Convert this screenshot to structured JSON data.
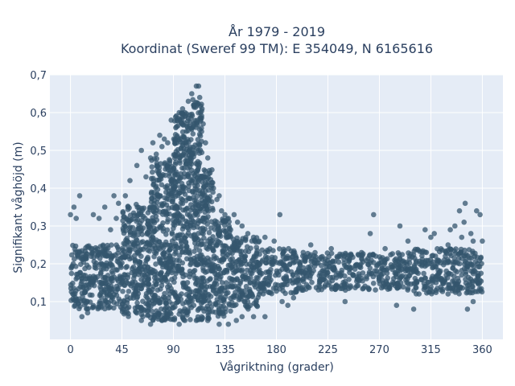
{
  "chart_data": {
    "type": "scatter",
    "title_line1": "År 1979 - 2019",
    "title_line2": "Koordinat (Sweref 99 TM): E 354049, N 6165616",
    "xlabel": "Vågriktning (grader)",
    "ylabel": "Signifikant våghöjd (m)",
    "xlim": [
      -18,
      378
    ],
    "ylim": [
      0.0,
      0.7
    ],
    "xticks": [
      0,
      45,
      90,
      135,
      180,
      225,
      270,
      315,
      360
    ],
    "yticks": [
      0.1,
      0.2,
      0.3,
      0.4,
      0.5,
      0.6,
      0.7
    ],
    "ytick_labels": [
      "0,1",
      "0,2",
      "0,3",
      "0,4",
      "0,5",
      "0,6",
      "0,7"
    ],
    "grid": true,
    "colors": {
      "plot_bg": "#e5ecf6",
      "grid": "#ffffff",
      "marker": "#34556e"
    },
    "series": [
      {
        "dense_bands": [
          {
            "x": [
              0,
              45
            ],
            "y": [
              0.08,
              0.25
            ]
          },
          {
            "x": [
              45,
              70
            ],
            "y": [
              0.06,
              0.36
            ]
          },
          {
            "x": [
              70,
              90
            ],
            "y": [
              0.05,
              0.48
            ]
          },
          {
            "x": [
              90,
              105
            ],
            "y": [
              0.05,
              0.6
            ]
          },
          {
            "x": [
              105,
              115
            ],
            "y": [
              0.05,
              0.64
            ]
          },
          {
            "x": [
              115,
              125
            ],
            "y": [
              0.05,
              0.45
            ]
          },
          {
            "x": [
              125,
              140
            ],
            "y": [
              0.06,
              0.32
            ]
          },
          {
            "x": [
              140,
              165
            ],
            "y": [
              0.08,
              0.27
            ]
          },
          {
            "x": [
              165,
              200
            ],
            "y": [
              0.12,
              0.24
            ]
          },
          {
            "x": [
              200,
              300
            ],
            "y": [
              0.13,
              0.23
            ]
          },
          {
            "x": [
              300,
              360
            ],
            "y": [
              0.12,
              0.24
            ]
          }
        ],
        "points": [
          [
            0,
            0.33
          ],
          [
            3,
            0.35
          ],
          [
            5,
            0.32
          ],
          [
            8,
            0.38
          ],
          [
            2,
            0.12
          ],
          [
            4,
            0.09
          ],
          [
            10,
            0.06
          ],
          [
            15,
            0.07
          ],
          [
            20,
            0.33
          ],
          [
            25,
            0.32
          ],
          [
            30,
            0.35
          ],
          [
            35,
            0.29
          ],
          [
            38,
            0.38
          ],
          [
            40,
            0.32
          ],
          [
            42,
            0.36
          ],
          [
            48,
            0.38
          ],
          [
            52,
            0.42
          ],
          [
            58,
            0.46
          ],
          [
            62,
            0.5
          ],
          [
            66,
            0.43
          ],
          [
            70,
            0.48
          ],
          [
            72,
            0.52
          ],
          [
            75,
            0.49
          ],
          [
            78,
            0.54
          ],
          [
            80,
            0.51
          ],
          [
            82,
            0.53
          ],
          [
            85,
            0.52
          ],
          [
            88,
            0.58
          ],
          [
            92,
            0.56
          ],
          [
            95,
            0.6
          ],
          [
            98,
            0.61
          ],
          [
            100,
            0.59
          ],
          [
            103,
            0.63
          ],
          [
            106,
            0.65
          ],
          [
            108,
            0.62
          ],
          [
            110,
            0.67
          ],
          [
            112,
            0.67
          ],
          [
            113,
            0.64
          ],
          [
            115,
            0.61
          ],
          [
            116,
            0.57
          ],
          [
            118,
            0.52
          ],
          [
            120,
            0.48
          ],
          [
            122,
            0.44
          ],
          [
            125,
            0.4
          ],
          [
            128,
            0.37
          ],
          [
            130,
            0.38
          ],
          [
            132,
            0.34
          ],
          [
            135,
            0.33
          ],
          [
            138,
            0.32
          ],
          [
            140,
            0.29
          ],
          [
            143,
            0.33
          ],
          [
            146,
            0.31
          ],
          [
            150,
            0.3
          ],
          [
            155,
            0.28
          ],
          [
            160,
            0.27
          ],
          [
            165,
            0.26
          ],
          [
            170,
            0.27
          ],
          [
            178,
            0.26
          ],
          [
            183,
            0.33
          ],
          [
            185,
            0.1
          ],
          [
            190,
            0.09
          ],
          [
            195,
            0.11
          ],
          [
            210,
            0.25
          ],
          [
            228,
            0.24
          ],
          [
            240,
            0.1
          ],
          [
            262,
            0.28
          ],
          [
            265,
            0.33
          ],
          [
            275,
            0.24
          ],
          [
            285,
            0.09
          ],
          [
            288,
            0.3
          ],
          [
            295,
            0.26
          ],
          [
            300,
            0.08
          ],
          [
            310,
            0.29
          ],
          [
            315,
            0.27
          ],
          [
            318,
            0.28
          ],
          [
            330,
            0.25
          ],
          [
            332,
            0.29
          ],
          [
            336,
            0.3
          ],
          [
            340,
            0.34
          ],
          [
            342,
            0.27
          ],
          [
            344,
            0.31
          ],
          [
            345,
            0.36
          ],
          [
            347,
            0.08
          ],
          [
            350,
            0.28
          ],
          [
            352,
            0.26
          ],
          [
            355,
            0.34
          ],
          [
            358,
            0.33
          ],
          [
            360,
            0.26
          ],
          [
            352,
            0.1
          ],
          [
            330,
            0.12
          ],
          [
            62,
            0.05
          ],
          [
            70,
            0.04
          ],
          [
            80,
            0.05
          ],
          [
            95,
            0.04
          ],
          [
            100,
            0.05
          ],
          [
            110,
            0.05
          ],
          [
            120,
            0.05
          ],
          [
            130,
            0.04
          ],
          [
            138,
            0.04
          ],
          [
            145,
            0.05
          ],
          [
            150,
            0.06
          ],
          [
            160,
            0.06
          ],
          [
            170,
            0.06
          ]
        ]
      }
    ]
  }
}
